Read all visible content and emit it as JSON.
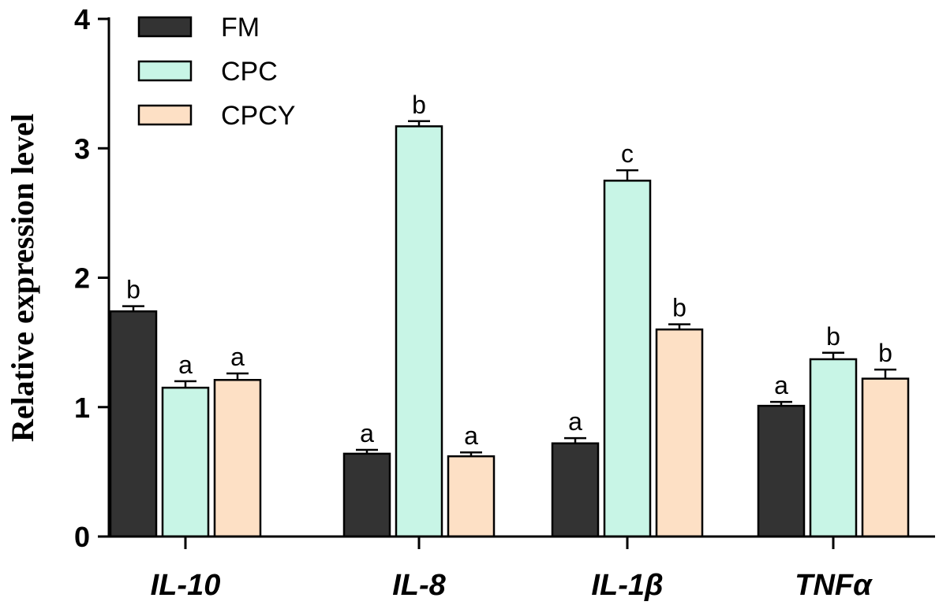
{
  "chart_data": {
    "type": "bar",
    "categories": [
      "IL-10",
      "IL-8",
      "IL-1β",
      "TNFα"
    ],
    "series": [
      {
        "name": "FM",
        "color": "#333333",
        "values": [
          1.74,
          0.64,
          0.72,
          1.01
        ],
        "errors": [
          0.04,
          0.03,
          0.04,
          0.03
        ],
        "labels": [
          "b",
          "a",
          "a",
          "a"
        ]
      },
      {
        "name": "CPC",
        "color": "#c8f5e6",
        "values": [
          1.15,
          3.17,
          2.75,
          1.37
        ],
        "errors": [
          0.05,
          0.04,
          0.08,
          0.05
        ],
        "labels": [
          "a",
          "b",
          "c",
          "b"
        ]
      },
      {
        "name": "CPCY",
        "color": "#fde0c5",
        "values": [
          1.21,
          0.62,
          1.6,
          1.22
        ],
        "errors": [
          0.05,
          0.03,
          0.04,
          0.07
        ],
        "labels": [
          "a",
          "a",
          "b",
          "b"
        ]
      }
    ],
    "ylabel": "Relative expression level",
    "xlabel": "",
    "ylim": [
      0,
      4
    ],
    "yticks": [
      "0",
      "1",
      "2",
      "3",
      "4"
    ],
    "legend_position": "top-left",
    "grid": false
  }
}
